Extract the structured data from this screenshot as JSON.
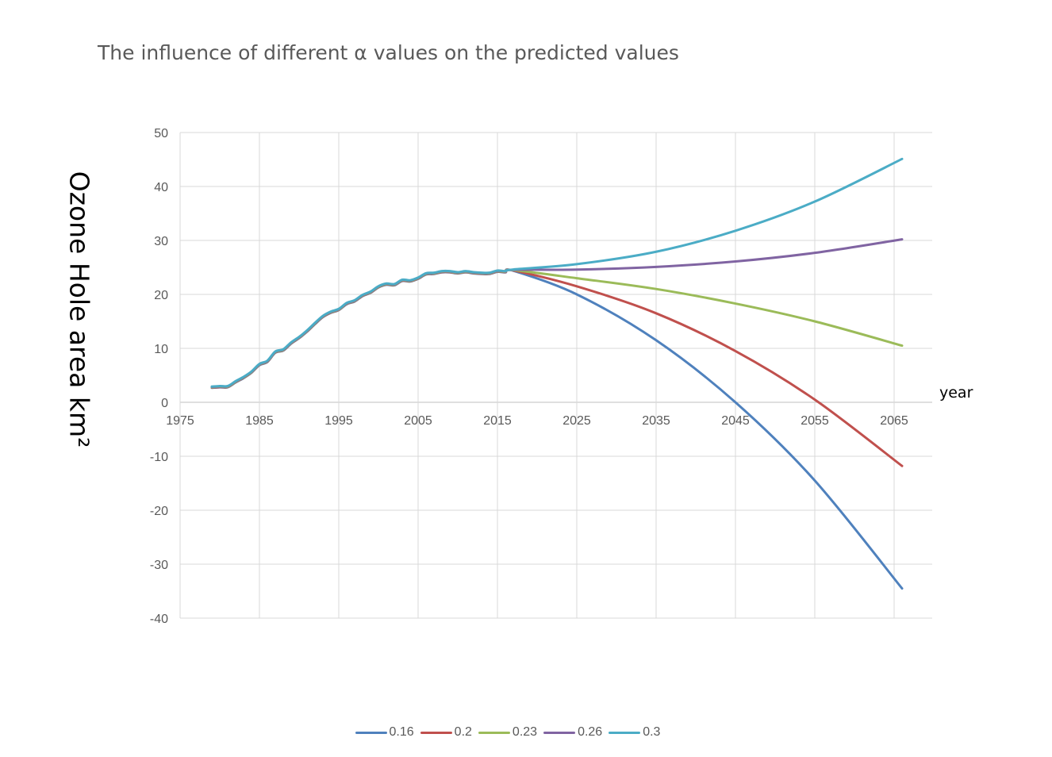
{
  "chart_data": {
    "type": "line",
    "title": "The influence of different α values on the predicted values",
    "xlabel": "year",
    "ylabel": "Ozone Hole area km²",
    "xlim": [
      1975,
      2070
    ],
    "ylim": [
      -40,
      50
    ],
    "x_ticks": [
      1975,
      1985,
      1995,
      2005,
      2015,
      2025,
      2035,
      2045,
      2055,
      2065
    ],
    "y_ticks": [
      -40,
      -30,
      -20,
      -10,
      0,
      10,
      20,
      30,
      40,
      50
    ],
    "grid": true,
    "legend_position": "bottom",
    "history": {
      "x": [
        1979,
        1980,
        1981,
        1982,
        1983,
        1984,
        1985,
        1986,
        1987,
        1988,
        1989,
        1990,
        1991,
        1992,
        1993,
        1994,
        1995,
        1996,
        1997,
        1998,
        1999,
        2000,
        2001,
        2002,
        2003,
        2004,
        2005,
        2006,
        2007,
        2008,
        2009,
        2010,
        2011,
        2012,
        2013,
        2014,
        2015,
        2016,
        2017
      ],
      "y": [
        2.8,
        2.9,
        2.9,
        3.8,
        4.6,
        5.6,
        7.0,
        7.6,
        9.3,
        9.7,
        11.0,
        12.0,
        13.2,
        14.6,
        15.9,
        16.7,
        17.2,
        18.3,
        18.8,
        19.8,
        20.4,
        21.4,
        21.9,
        21.8,
        22.6,
        22.5,
        23.0,
        23.8,
        23.9,
        24.2,
        24.2,
        24.0,
        24.2,
        24.0,
        23.9,
        23.9,
        24.3,
        24.2,
        24.5
      ]
    },
    "series": [
      {
        "name": "0.16",
        "color": "#4F81BD",
        "x": [
          2017,
          2025,
          2035,
          2045,
          2055,
          2066
        ],
        "y": [
          23.5,
          20.0,
          11.5,
          0.0,
          -14.5,
          -34.5
        ]
      },
      {
        "name": "0.2",
        "color": "#C0504D",
        "x": [
          2017,
          2025,
          2035,
          2045,
          2055,
          2066
        ],
        "y": [
          24.0,
          21.5,
          16.5,
          9.5,
          0.5,
          -11.8
        ]
      },
      {
        "name": "0.23",
        "color": "#9BBB59",
        "x": [
          2017,
          2025,
          2035,
          2045,
          2055,
          2066
        ],
        "y": [
          24.0,
          23.0,
          21.0,
          18.3,
          15.0,
          10.5
        ]
      },
      {
        "name": "0.26",
        "color": "#8064A2",
        "x": [
          2017,
          2025,
          2035,
          2045,
          2055,
          2066
        ],
        "y": [
          24.4,
          24.6,
          25.1,
          26.1,
          27.7,
          30.2
        ]
      },
      {
        "name": "0.3",
        "color": "#4BACC6",
        "x": [
          2017,
          2025,
          2035,
          2045,
          2055,
          2066
        ],
        "y": [
          24.7,
          25.6,
          27.9,
          31.8,
          37.2,
          45.1
        ]
      }
    ]
  }
}
